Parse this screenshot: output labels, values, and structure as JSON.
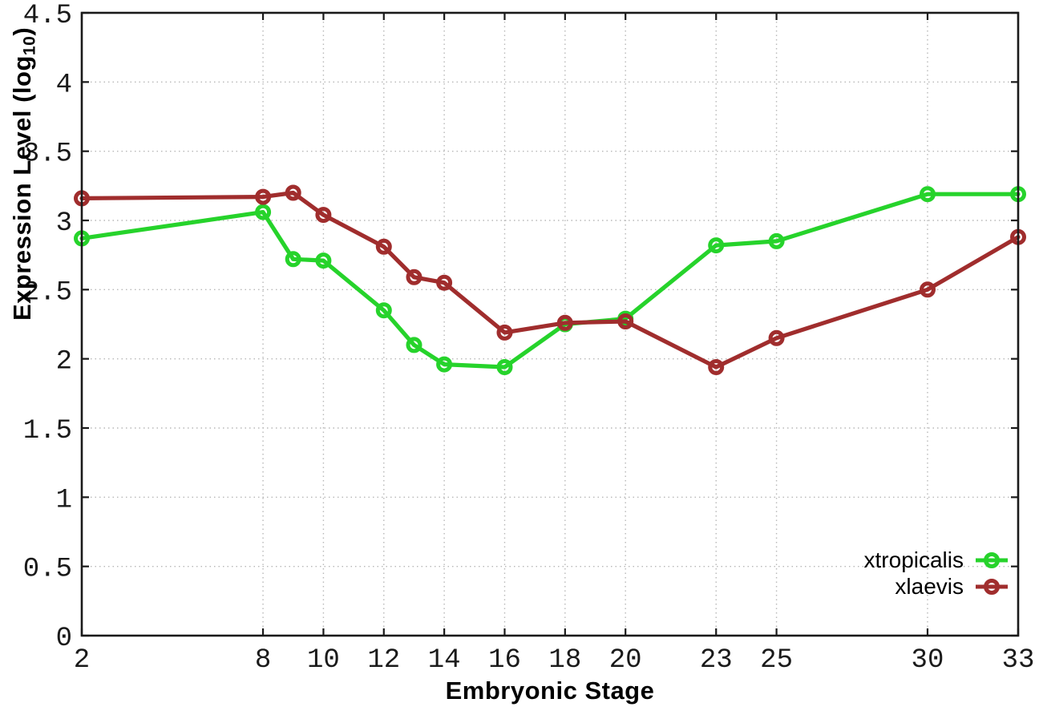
{
  "chart_data": {
    "type": "line",
    "xlabel": "Embryonic Stage",
    "ylabel": "Expression Level (log10)",
    "ylabel_parts": {
      "main": "Expression Level (log",
      "sub": "10",
      "end": ")"
    },
    "x": [
      2,
      8,
      9,
      10,
      12,
      13,
      14,
      16,
      18,
      20,
      23,
      25,
      30,
      33
    ],
    "x_ticks": [
      2,
      8,
      10,
      12,
      14,
      16,
      18,
      20,
      23,
      25,
      30,
      33
    ],
    "y_ticks": [
      0,
      0.5,
      1,
      1.5,
      2,
      2.5,
      3,
      3.5,
      4,
      4.5
    ],
    "xlim": [
      2,
      33
    ],
    "ylim": [
      0,
      4.5
    ],
    "grid": true,
    "marker_style": "open-circle",
    "legend_position": "inside-bottom-right",
    "colors": {
      "axis": "#1a1a1a",
      "grid": "#b8b8b8",
      "background": "#ffffff"
    },
    "series": [
      {
        "name": "xtropicalis",
        "color": "#26d32b",
        "values": [
          2.87,
          3.06,
          2.72,
          2.71,
          2.35,
          2.1,
          1.96,
          1.94,
          2.25,
          2.29,
          2.82,
          2.85,
          3.19,
          3.19
        ]
      },
      {
        "name": "xlaevis",
        "color": "#a02d2d",
        "values": [
          3.16,
          3.17,
          3.2,
          3.04,
          2.81,
          2.59,
          2.55,
          2.19,
          2.26,
          2.27,
          1.94,
          2.15,
          2.5,
          2.88
        ]
      }
    ]
  },
  "legend": {
    "items": [
      {
        "label": "xtropicalis"
      },
      {
        "label": "xlaevis"
      }
    ]
  }
}
